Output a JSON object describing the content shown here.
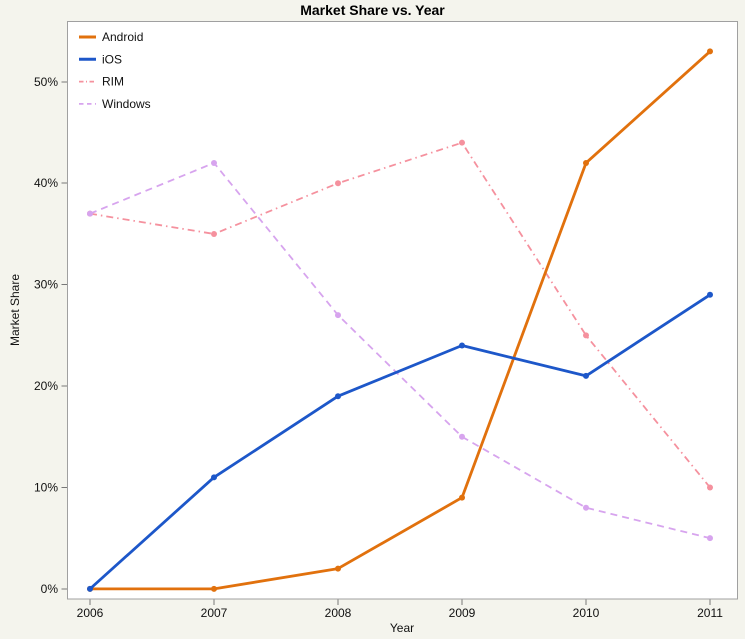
{
  "colors": {
    "background": "#F4F4ED",
    "plot_background": "#FFFFFF",
    "border": "#A0A0A0",
    "tick": "#777777",
    "text": "#111111"
  },
  "chart_data": {
    "type": "line",
    "title": "Market Share vs. Year",
    "xlabel": "Year",
    "ylabel": "Market Share",
    "x": [
      2006,
      2007,
      2008,
      2009,
      2010,
      2011
    ],
    "x_tick_labels": [
      "2006",
      "2007",
      "2008",
      "2009",
      "2010",
      "2011"
    ],
    "y_ticks": [
      0,
      10,
      20,
      30,
      40,
      50
    ],
    "y_tick_labels": [
      "0%",
      "10%",
      "20%",
      "30%",
      "40%",
      "50%"
    ],
    "ylim": [
      -1,
      56
    ],
    "grid": false,
    "legend_position": "top-left",
    "series": [
      {
        "name": "Android",
        "color": "#E1710D",
        "line_style": "solid",
        "line_width": 2.8,
        "values": [
          0,
          0,
          2,
          9,
          42,
          53
        ]
      },
      {
        "name": "iOS",
        "color": "#1D57C9",
        "line_style": "solid",
        "line_width": 2.8,
        "values": [
          0,
          11,
          19,
          24,
          21,
          29
        ]
      },
      {
        "name": "RIM",
        "color": "#F5919E",
        "line_style": "dashdot",
        "line_width": 1.8,
        "values": [
          37,
          35,
          40,
          44,
          25,
          10
        ]
      },
      {
        "name": "Windows",
        "color": "#D7A4EE",
        "line_style": "dashed",
        "line_width": 1.8,
        "values": [
          37,
          42,
          27,
          15,
          8,
          5
        ]
      }
    ]
  }
}
